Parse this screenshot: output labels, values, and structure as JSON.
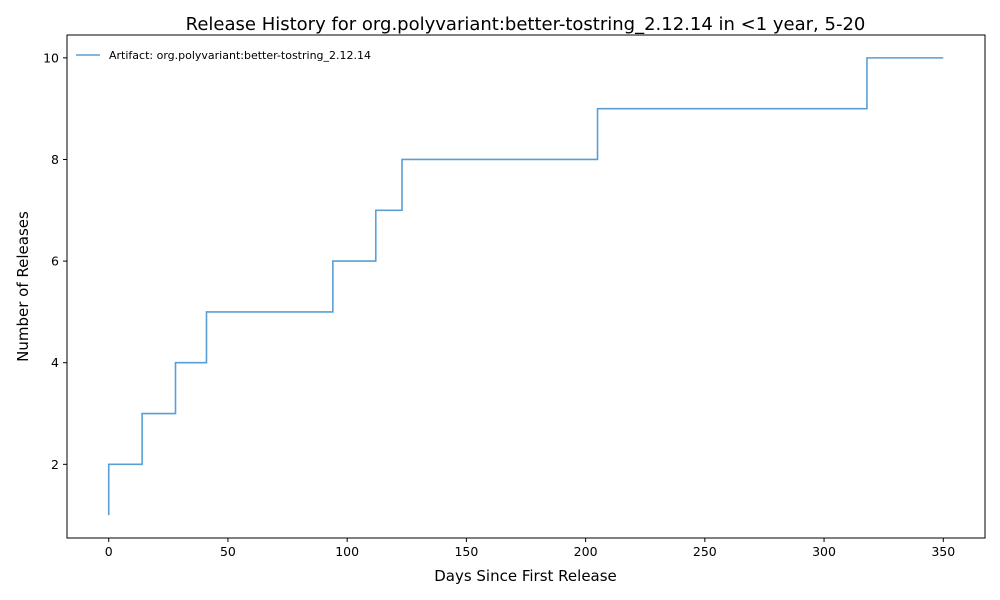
{
  "chart_data": {
    "type": "line",
    "title": "Release History for org.polyvariant:better-tostring_2.12.14 in <1 year, 5-20",
    "xlabel": "Days Since First Release",
    "ylabel": "Number of Releases",
    "xlim": [
      -17.5,
      367.5
    ],
    "ylim": [
      0.55,
      10.45
    ],
    "x_ticks": [
      0,
      50,
      100,
      150,
      200,
      250,
      300,
      350
    ],
    "y_ticks": [
      2,
      4,
      6,
      8,
      10
    ],
    "grid": false,
    "legend_position": "top-left",
    "step": "post",
    "series": [
      {
        "name": "Artifact: org.polyvariant:better-tostring_2.12.14",
        "color": "#5a9fd4",
        "x": [
          0,
          0,
          14,
          28,
          41,
          94,
          112,
          123,
          205,
          318,
          350
        ],
        "y": [
          1,
          2,
          3,
          4,
          5,
          6,
          7,
          8,
          9,
          10,
          10
        ]
      }
    ]
  }
}
